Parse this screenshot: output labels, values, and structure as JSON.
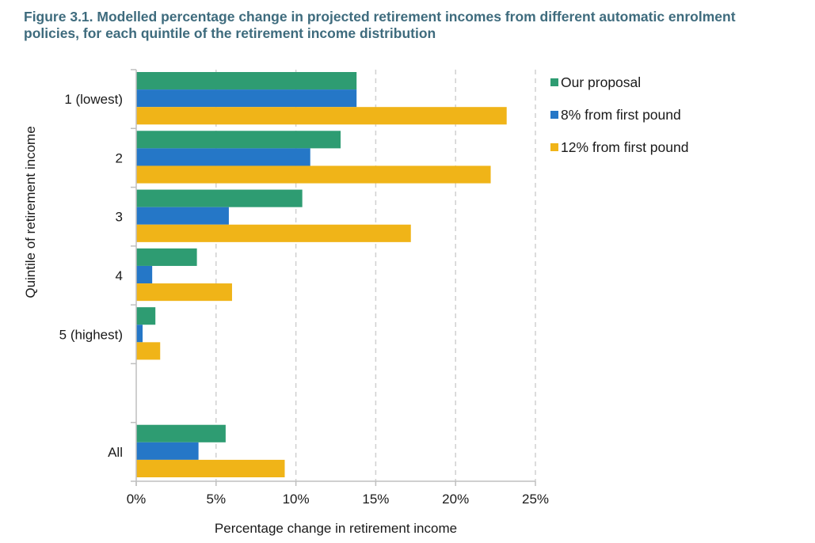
{
  "figure": {
    "title": "Figure 3.1. Modelled percentage change in projected retirement incomes from different automatic enrolment policies, for each quintile of the retirement income distribution"
  },
  "chart_data": {
    "type": "bar",
    "orientation": "horizontal",
    "title": "Figure 3.1. Modelled percentage change in projected retirement incomes from different automatic enrolment policies, for each quintile of the retirement income distribution",
    "xlabel": "Percentage change in retirement income",
    "ylabel": "Quintile of retirement income",
    "categories": [
      "1 (lowest)",
      "2",
      "3",
      "4",
      "5 (highest)",
      "",
      "All"
    ],
    "series": [
      {
        "name": "Our proposal",
        "color": "#2e9c72",
        "values": [
          13.8,
          12.8,
          10.4,
          3.8,
          1.2,
          null,
          5.6
        ]
      },
      {
        "name": "8% from first pound",
        "color": "#2577c7",
        "values": [
          13.8,
          10.9,
          5.8,
          1.0,
          0.4,
          null,
          3.9
        ]
      },
      {
        "name": "12% from first pound",
        "color": "#f0b418",
        "values": [
          23.2,
          22.2,
          17.2,
          6.0,
          1.5,
          null,
          9.3
        ]
      }
    ],
    "xlim": [
      0,
      25
    ],
    "xticks": [
      0,
      5,
      10,
      15,
      20,
      25
    ],
    "xtick_labels": [
      "0%",
      "5%",
      "10%",
      "15%",
      "20%",
      "25%"
    ],
    "grid": "vertical dashed",
    "legend_position": "top-right"
  }
}
